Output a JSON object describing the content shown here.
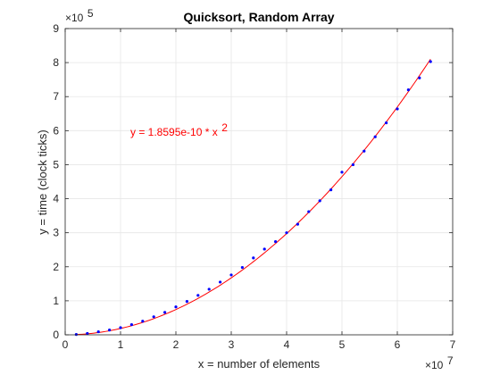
{
  "chart_data": {
    "type": "scatter",
    "title": "Quicksort, Random Array",
    "xlabel": "x = number of elements",
    "ylabel": "y = time (clock ticks)",
    "xlim": [
      0,
      70000000
    ],
    "ylim": [
      0,
      900000
    ],
    "x_ticks": [
      0,
      1,
      2,
      3,
      4,
      5,
      6,
      7
    ],
    "y_ticks": [
      0,
      1,
      2,
      3,
      4,
      5,
      6,
      7,
      8,
      9
    ],
    "x_multiplier_base": "×10",
    "x_multiplier_exp": "7",
    "y_multiplier_base": "×10",
    "y_multiplier_exp": "5",
    "grid": true,
    "series": [
      {
        "marker": "dot",
        "color": "#0000ff",
        "x": [
          2000000,
          4000000,
          6000000,
          8000000,
          10000000,
          12000000,
          14000000,
          16000000,
          18000000,
          20000000,
          22000000,
          24000000,
          26000000,
          28000000,
          30000000,
          32000000,
          34000000,
          36000000,
          38000000,
          40000000,
          42000000,
          44000000,
          46000000,
          48000000,
          50000000,
          52000000,
          54000000,
          56000000,
          58000000,
          60000000,
          62000000,
          64000000,
          66000000
        ],
        "y": [
          1000,
          4000,
          9000,
          14000,
          21000,
          30000,
          40000,
          53000,
          66000,
          82000,
          98000,
          116000,
          134000,
          155000,
          176000,
          198000,
          226000,
          252000,
          274000,
          300000,
          325000,
          362000,
          394000,
          426000,
          478000,
          500000,
          540000,
          582000,
          623000,
          664000,
          720000,
          755000,
          803000
        ]
      }
    ],
    "fit": {
      "color": "#ff0000",
      "coefficient": 1.8595e-10,
      "equation_text": "y = 1.8595e-10 * x",
      "equation_exponent": "2",
      "x_range": [
        2000000,
        66000000
      ]
    }
  }
}
